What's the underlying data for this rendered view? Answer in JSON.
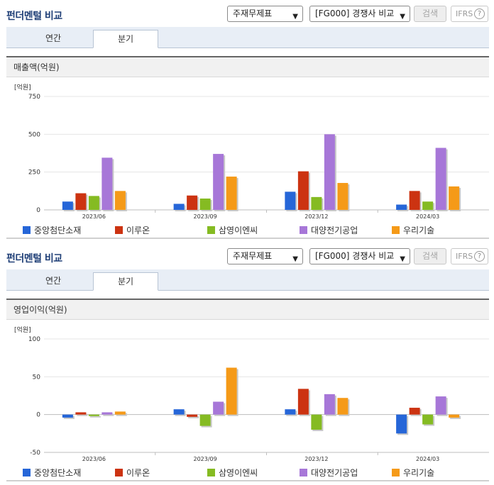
{
  "panels": [
    {
      "title": "펀더멘털 비교",
      "select1": "주재무제표",
      "select2": "[FG000] 경쟁사 비교",
      "search_label": "검색",
      "ifrs_label": "IFRS",
      "ifrs_help": "?",
      "tabs": [
        "연간",
        "분기"
      ],
      "active_tab": "분기",
      "section_title": "매출액(억원)",
      "unit_label": "[억원]"
    },
    {
      "title": "펀더멘털 비교",
      "select1": "주재무제표",
      "select2": "[FG000] 경쟁사 비교",
      "search_label": "검색",
      "ifrs_label": "IFRS",
      "ifrs_help": "?",
      "tabs": [
        "연간",
        "분기"
      ],
      "active_tab": "분기",
      "section_title": "영업이익(억원)",
      "unit_label": "[억원]"
    }
  ],
  "legend": [
    {
      "name": "중앙첨단소재",
      "color": "#2666d8"
    },
    {
      "name": "이루온",
      "color": "#cc3311"
    },
    {
      "name": "삼영이엔씨",
      "color": "#85bb22"
    },
    {
      "name": "대양전기공업",
      "color": "#a777d8"
    },
    {
      "name": "우리기술",
      "color": "#f59a18"
    }
  ],
  "chart_data": [
    {
      "type": "bar",
      "title": "매출액(억원)",
      "ylabel": "[억원]",
      "categories": [
        "2023/06",
        "2023/09",
        "2023/12",
        "2024/03"
      ],
      "ylim": [
        0,
        750
      ],
      "yticks": [
        0,
        250,
        500,
        750
      ],
      "series": [
        {
          "name": "중앙첨단소재",
          "color": "#2666d8",
          "values": [
            55,
            40,
            120,
            35
          ]
        },
        {
          "name": "이루온",
          "color": "#cc3311",
          "values": [
            110,
            95,
            255,
            125
          ]
        },
        {
          "name": "삼영이엔씨",
          "color": "#85bb22",
          "values": [
            92,
            75,
            85,
            55
          ]
        },
        {
          "name": "대양전기공업",
          "color": "#a777d8",
          "values": [
            345,
            370,
            500,
            410
          ]
        },
        {
          "name": "우리기술",
          "color": "#f59a18",
          "values": [
            125,
            220,
            178,
            155
          ]
        }
      ]
    },
    {
      "type": "bar",
      "title": "영업이익(억원)",
      "ylabel": "[억원]",
      "categories": [
        "2023/06",
        "2023/09",
        "2023/12",
        "2024/03"
      ],
      "ylim": [
        -50,
        100
      ],
      "yticks": [
        -50,
        0,
        50,
        100
      ],
      "series": [
        {
          "name": "중앙첨단소재",
          "color": "#2666d8",
          "values": [
            -4,
            7,
            7,
            -25
          ]
        },
        {
          "name": "이루온",
          "color": "#cc3311",
          "values": [
            3,
            -3,
            34,
            9
          ]
        },
        {
          "name": "삼영이엔씨",
          "color": "#85bb22",
          "values": [
            -2,
            -15,
            -20,
            -13
          ]
        },
        {
          "name": "대양전기공업",
          "color": "#a777d8",
          "values": [
            3,
            17,
            27,
            24
          ]
        },
        {
          "name": "우리기술",
          "color": "#f59a18",
          "values": [
            4,
            62,
            22,
            -4
          ]
        }
      ]
    }
  ]
}
